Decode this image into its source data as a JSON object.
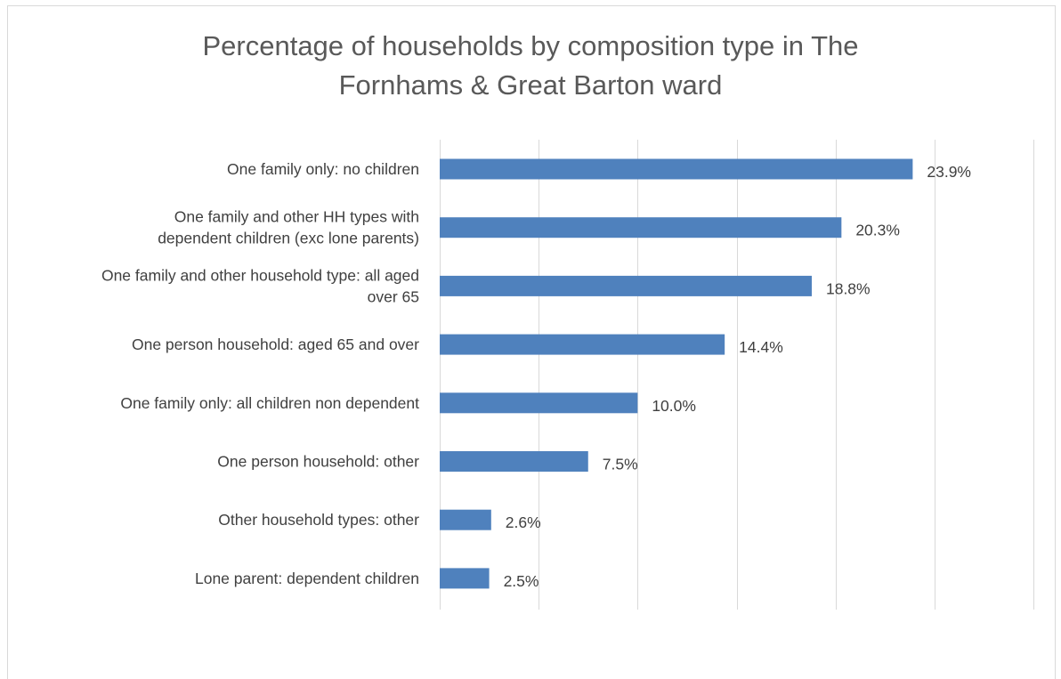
{
  "chart_data": {
    "type": "bar",
    "orientation": "horizontal",
    "title_lines": [
      "Percentage of households by composition type in The",
      "Fornhams & Great Barton ward"
    ],
    "categories": [
      [
        "One family only: no children"
      ],
      [
        "One family and other HH types with",
        "dependent children (exc lone parents)"
      ],
      [
        "One family and other household type: all aged",
        "over 65"
      ],
      [
        "One person household: aged 65 and over"
      ],
      [
        "One family only: all children non dependent"
      ],
      [
        "One person household: other"
      ],
      [
        "Other household types: other"
      ],
      [
        "Lone parent: dependent children"
      ]
    ],
    "values": [
      23.9,
      20.3,
      18.8,
      14.4,
      10.0,
      7.5,
      2.6,
      2.5
    ],
    "data_labels": [
      "23.9%",
      "20.3%",
      "18.8%",
      "14.4%",
      "10.0%",
      "7.5%",
      "2.6%",
      "2.5%"
    ],
    "xlim": [
      0,
      30
    ],
    "grid_step": 5,
    "grid": true,
    "bar_color": "#4f81bd",
    "gridline_color": "#d9d9d9",
    "text_color": "#404040"
  }
}
